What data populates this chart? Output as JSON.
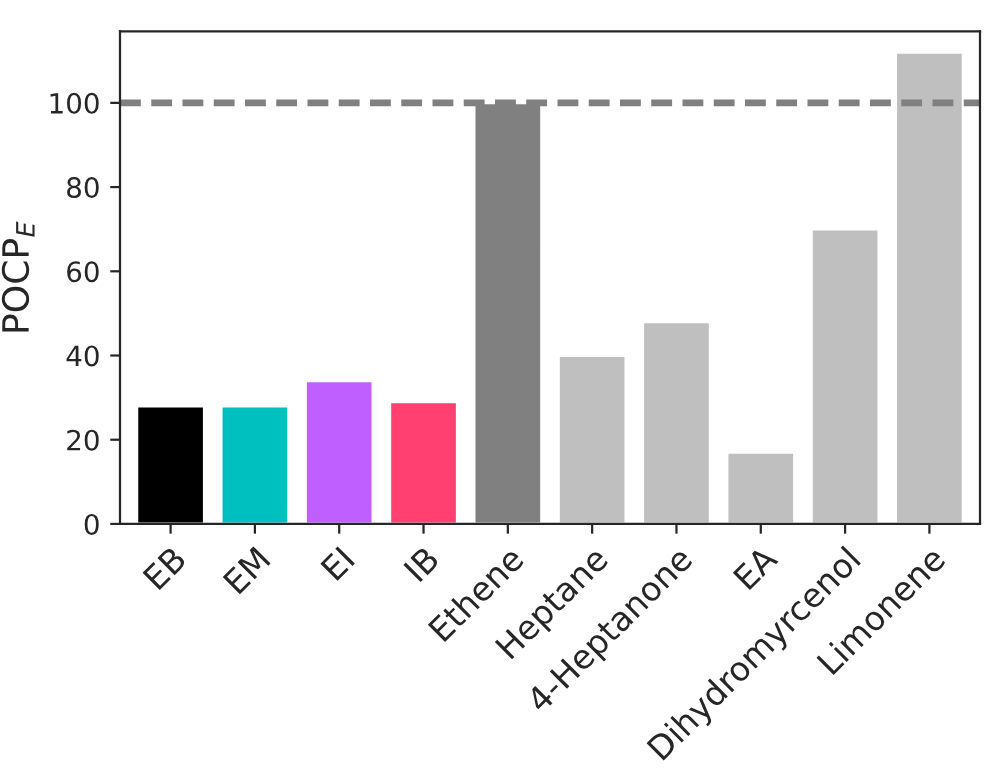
{
  "chart_data": {
    "type": "bar",
    "ylabel": "POCP$_{E}$",
    "categories": [
      "EB",
      "EM",
      "EI",
      "IB",
      "Ethene",
      "Heptane",
      "4-Heptanone",
      "EA",
      "Dihydromyrcenol",
      "Limonene"
    ],
    "values": [
      28,
      28,
      34,
      29,
      100,
      40,
      48,
      17,
      70,
      112
    ],
    "colors": [
      "#000000",
      "#00bfbf",
      "#bf5fff",
      "#ff4070",
      "#808080",
      "#bfbfbf",
      "#bfbfbf",
      "#bfbfbf",
      "#bfbfbf",
      "#bfbfbf"
    ],
    "ylim": [
      0,
      117
    ],
    "yticks": [
      0,
      20,
      40,
      60,
      80,
      100
    ],
    "ref_lines": [
      {
        "axis": "y",
        "value": 100,
        "color": "#808080",
        "line_style": "dashed"
      }
    ],
    "grid": false,
    "legend": false
  }
}
